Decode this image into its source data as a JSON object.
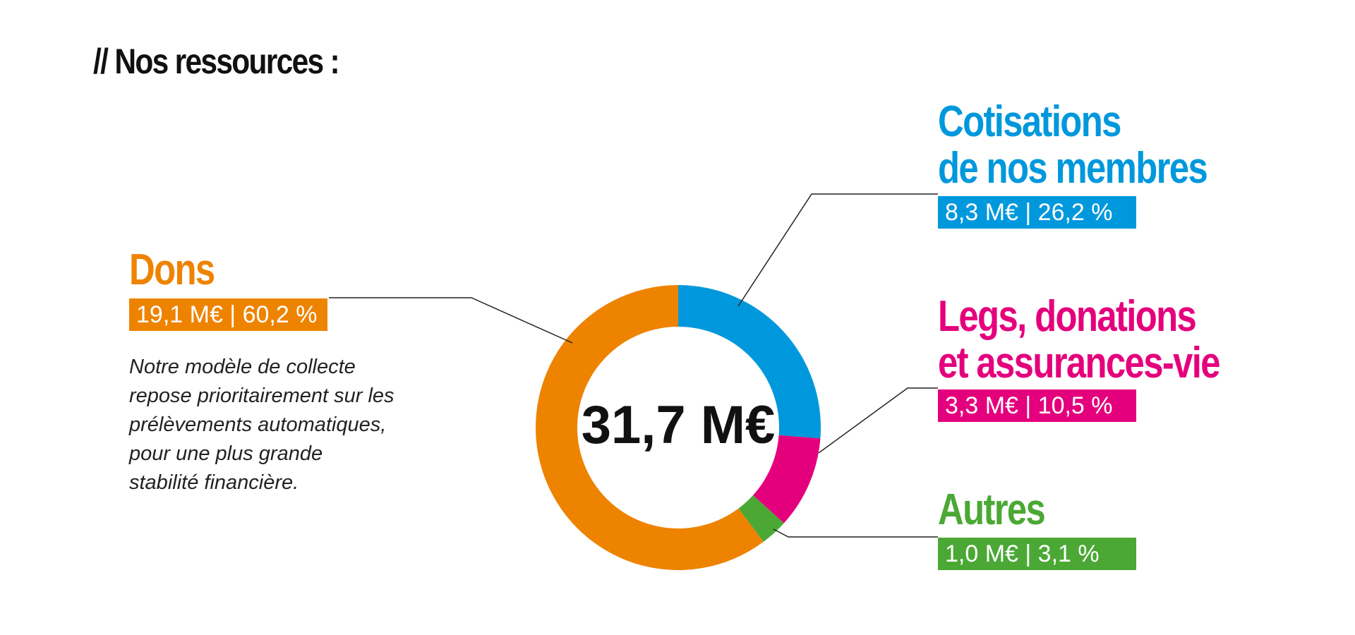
{
  "chart_data": {
    "type": "pie",
    "donut": true,
    "title": "// Nos ressources :",
    "center_label": "31,7 M€",
    "categories": [
      "Cotisations\nde nos membres",
      "Legs, donations\net assurances-vie",
      "Autres",
      "Dons"
    ],
    "values": [
      26.2,
      10.5,
      3.1,
      60.2
    ],
    "value_labels": [
      "8,3 M€ | 26,2 %",
      "3,3 M€ | 10,5 %",
      "1,0 M€ | 3,1 %",
      "19,1 M€ | 60,2 %"
    ],
    "colors": [
      "#0098dc",
      "#e4007d",
      "#4ba835",
      "#ee8300"
    ],
    "notes": [
      "",
      "",
      "",
      "Notre modèle de collecte\nrepose prioritairement sur les\nprélèvements automatiques,\npour une plus grande\nstabilité financière."
    ]
  }
}
